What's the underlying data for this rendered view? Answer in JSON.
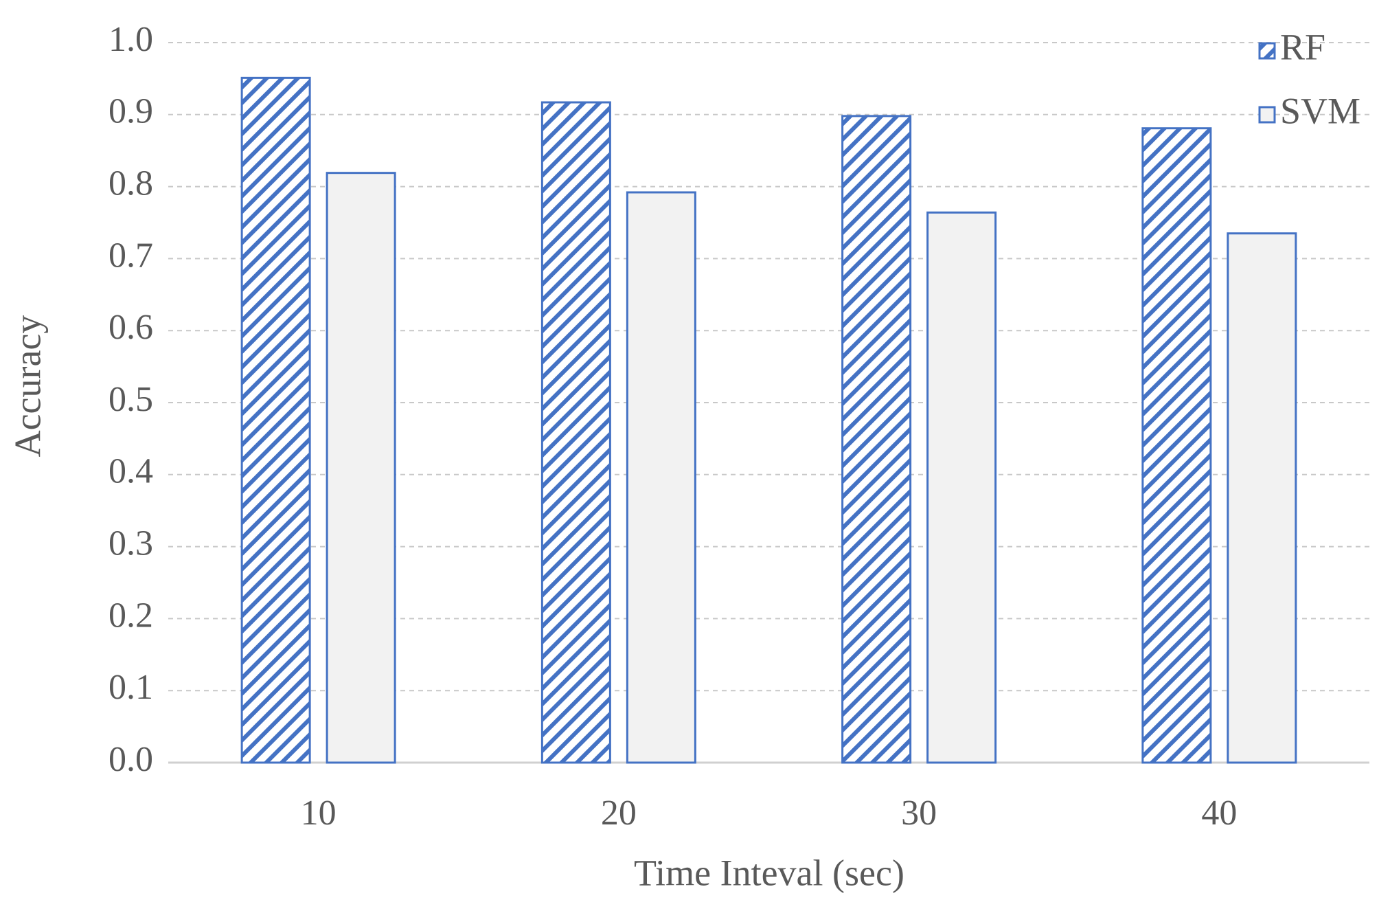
{
  "chart_data": {
    "type": "bar",
    "x_label": "Time Inteval (sec)",
    "y_label": "Accuracy",
    "categories": [
      "10",
      "20",
      "30",
      "40"
    ],
    "series": [
      {
        "name": "RF",
        "color": "#4472c4",
        "hatch": true,
        "values": [
          0.951,
          0.917,
          0.898,
          0.881
        ]
      },
      {
        "name": "SVM",
        "color": "#4472c4",
        "fill": "#f2f2f2",
        "hatch": false,
        "values": [
          0.819,
          0.792,
          0.764,
          0.735
        ]
      }
    ],
    "ylim": [
      0,
      1
    ],
    "yticks": [
      {
        "value": 0,
        "label": "0.0"
      },
      {
        "value": 0.1,
        "label": "0.1"
      },
      {
        "value": 0.2,
        "label": "0.2"
      },
      {
        "value": 0.3,
        "label": "0.3"
      },
      {
        "value": 0.4,
        "label": "0.4"
      },
      {
        "value": 0.5,
        "label": "0.5"
      },
      {
        "value": 0.6,
        "label": "0.6"
      },
      {
        "value": 0.7,
        "label": "0.7"
      },
      {
        "value": 0.8,
        "label": "0.8"
      },
      {
        "value": 0.9,
        "label": "0.9"
      },
      {
        "value": 1,
        "label": "1.0"
      }
    ],
    "grid": true,
    "legend": "upper right"
  }
}
